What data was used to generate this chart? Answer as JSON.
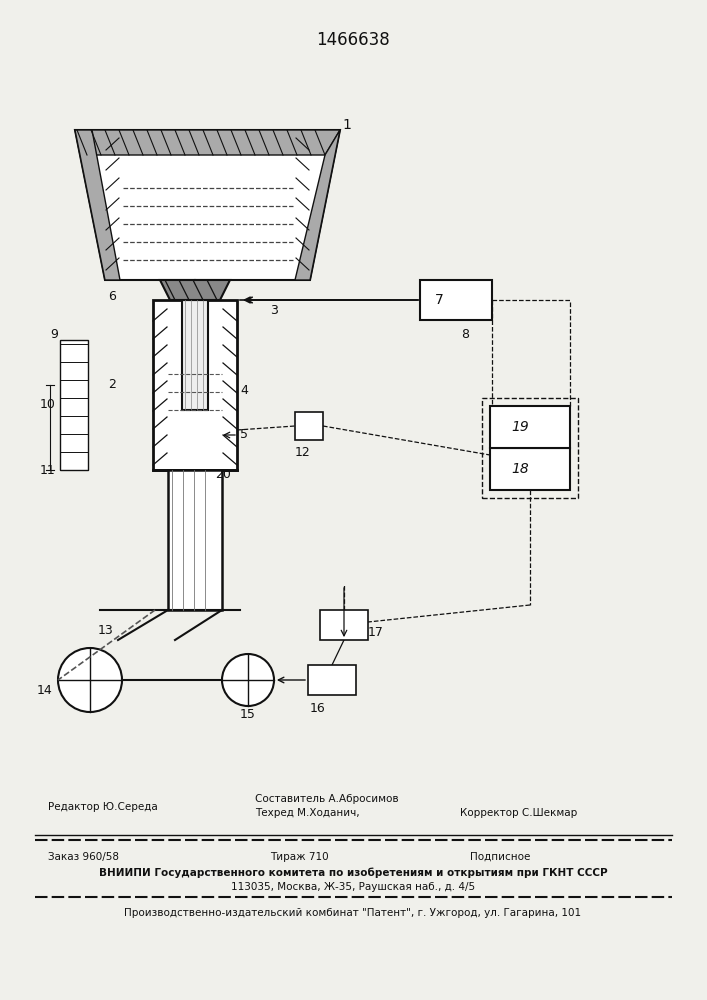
{
  "title": "1466638",
  "title_fontsize": 12,
  "bg_color": "#f0f0eb",
  "line_color": "#111111",
  "footer_line1_left": "Редактор Ю.Середа",
  "footer_line1_center_top": "Составитель А.Абросимов",
  "footer_line1_center": "Техред М.Ходанич,",
  "footer_line1_right": "Корректор С.Шекмар",
  "footer_line2_left": "Заказ 960/58",
  "footer_line2_center": "Тираж 710",
  "footer_line2_right": "Подписное",
  "footer_line3": "ВНИИПИ Государственного комитета по изобретениям и открытиям при ГКНТ СССР",
  "footer_line4": "113035, Москва, Ж-35, Раушская наб., д. 4/5",
  "footer_line5": "Производственно-издательский комбинат \"Патент\", г. Ужгород, ул. Гагарина, 101"
}
